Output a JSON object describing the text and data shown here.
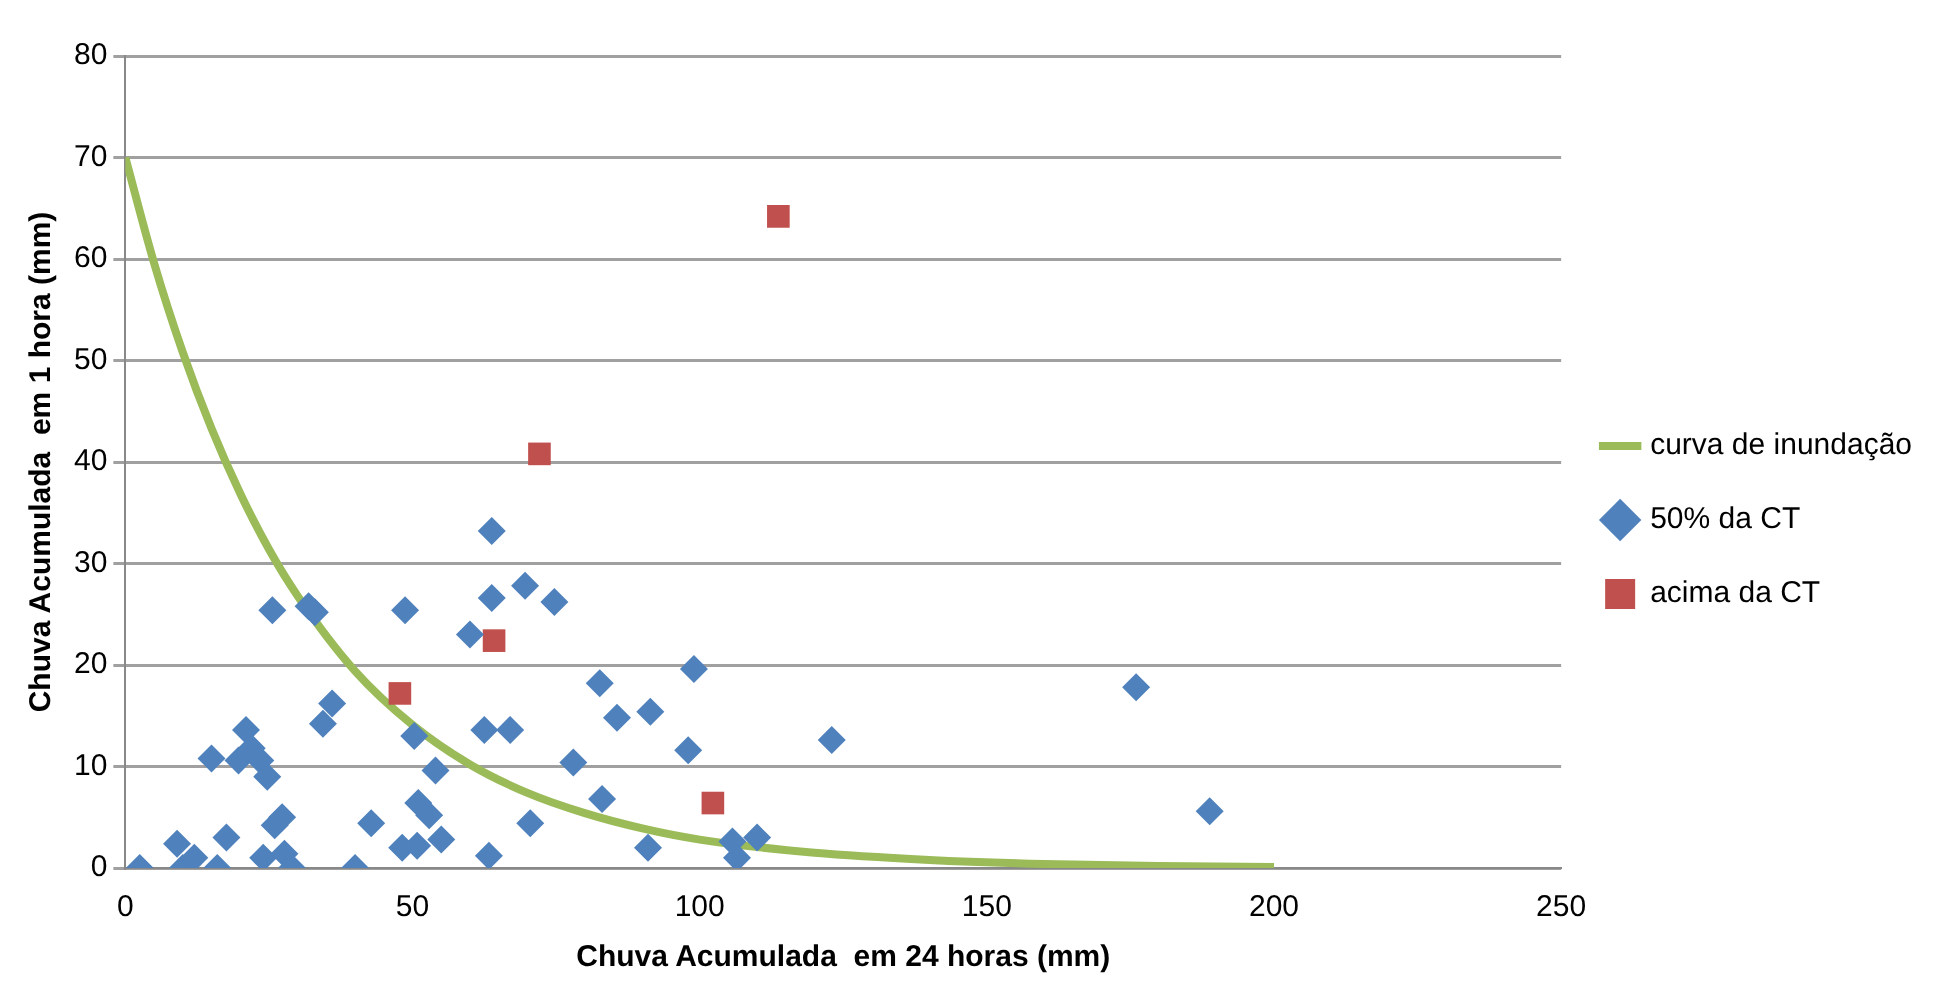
{
  "chart_data": {
    "type": "scatter",
    "xlabel": "Chuva Acumulada  em 24 horas (mm)",
    "ylabel": "Chuva Acumulada  em 1 hora (mm)",
    "xlim": [
      0,
      250
    ],
    "xticks": [
      0,
      50,
      100,
      150,
      200,
      250
    ],
    "ylim": [
      0,
      80
    ],
    "yticks": [
      0,
      10,
      20,
      30,
      40,
      50,
      60,
      70,
      80
    ],
    "grid": "y",
    "legend": "right",
    "series": [
      {
        "name": "curva de inundação",
        "type": "line",
        "color": "#9bbb59",
        "marker": "none",
        "line_style": "solid",
        "x": [
          0,
          5,
          10,
          15,
          20,
          25,
          30,
          40,
          50,
          60,
          70,
          80,
          90,
          100,
          120,
          140,
          160,
          180,
          200
        ],
        "values": [
          70,
          59.6,
          50.8,
          43.3,
          36.9,
          31.4,
          26.8,
          19.4,
          14.1,
          10.2,
          7.4,
          5.4,
          3.9,
          2.8,
          1.5,
          0.8,
          0.4,
          0.2,
          0.1
        ]
      },
      {
        "name": "50% da CT",
        "type": "scatter",
        "color": "#4f81bd",
        "marker": "diamond",
        "x": [
          2.5,
          9,
          10,
          15,
          12,
          16,
          17.6,
          19.7,
          21,
          22,
          23.5,
          24.7,
          24,
          26,
          25.6,
          27.3,
          27.7,
          29,
          31.9,
          33,
          34.4,
          36,
          40,
          42.8,
          48.2,
          48.7,
          50.3,
          50.8,
          51,
          52.9,
          54,
          55,
          60,
          63.8,
          62.5,
          63.3,
          63.8,
          67,
          69.6,
          70.5,
          74.7,
          78,
          82.6,
          83,
          85.6,
          91.4,
          91,
          99,
          98,
          105.7,
          106.5,
          110,
          123,
          176,
          188.8
        ],
        "values": [
          0,
          2.4,
          0,
          10.8,
          1,
          0,
          3,
          10.6,
          13.6,
          11.8,
          10.6,
          9,
          1,
          4.2,
          25.4,
          5,
          1.4,
          0,
          25.8,
          25.2,
          14.2,
          16.2,
          0,
          4.4,
          2,
          25.4,
          13,
          2.2,
          6.4,
          5.2,
          9.6,
          2.8,
          23,
          33.2,
          13.6,
          1.2,
          26.6,
          13.6,
          27.8,
          4.4,
          26.2,
          10.4,
          18.2,
          6.8,
          14.8,
          15.4,
          2,
          19.6,
          11.6,
          2.6,
          1,
          3,
          12.6,
          17.8,
          5.6
        ]
      },
      {
        "name": "acima da CT",
        "type": "scatter",
        "color": "#c0504d",
        "marker": "square",
        "x": [
          47.8,
          64.2,
          72.1,
          102.3,
          113.7
        ],
        "values": [
          17.2,
          22.4,
          40.8,
          6.4,
          64.2
        ]
      }
    ]
  }
}
